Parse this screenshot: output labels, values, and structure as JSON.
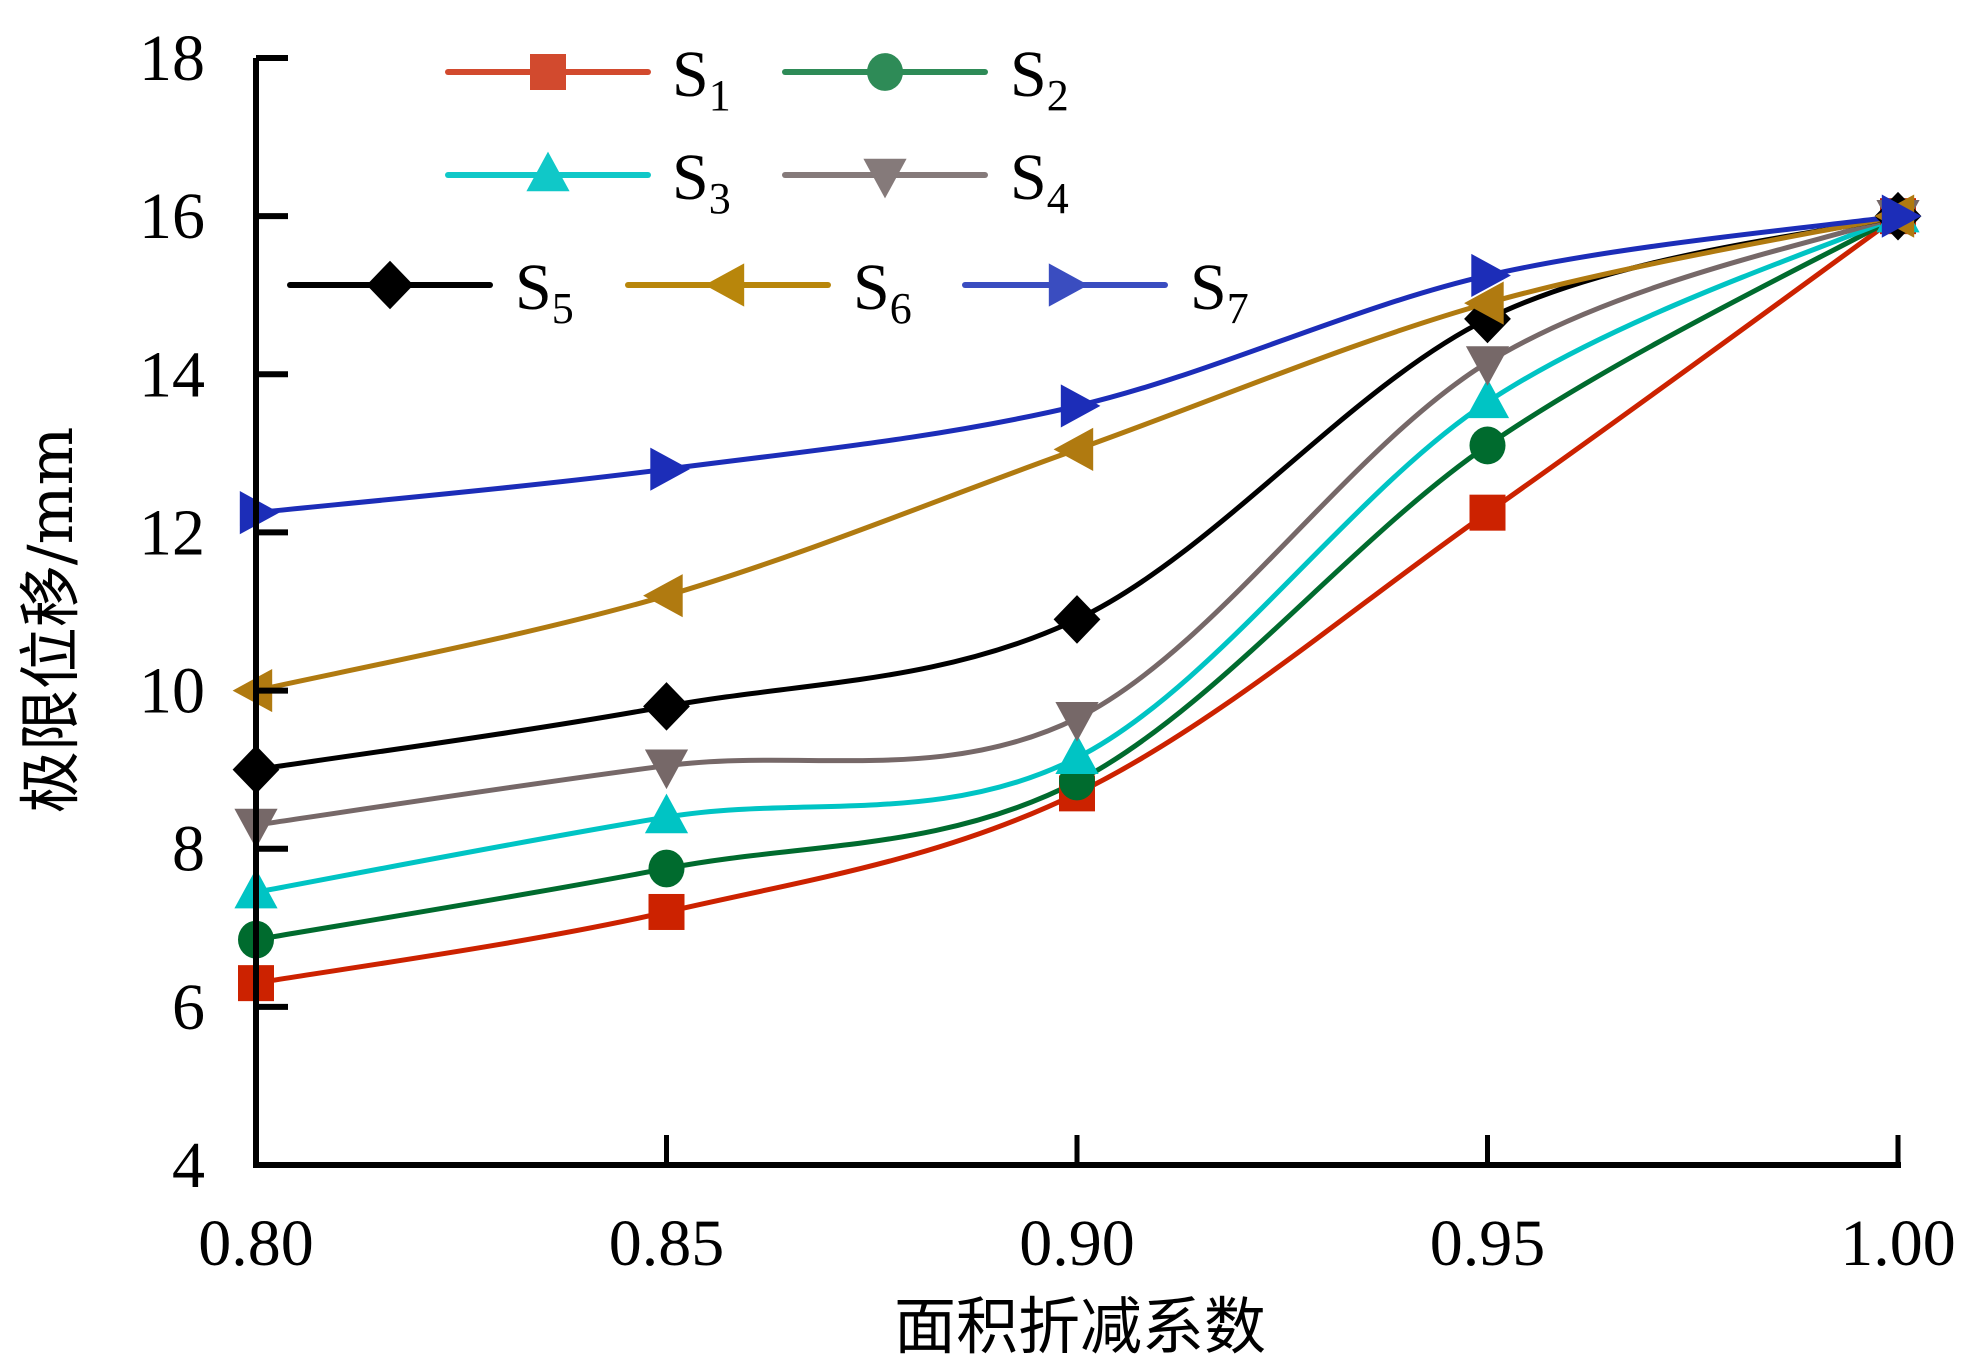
{
  "chart_data": {
    "type": "line",
    "title": "",
    "xlabel": "面积折减系数",
    "ylabel": "极限位移/mm",
    "x": [
      0.8,
      0.85,
      0.9,
      0.95,
      1.0
    ],
    "xticks": [
      "0.80",
      "0.85",
      "0.90",
      "0.95",
      "1.00"
    ],
    "yticks": [
      "4",
      "6",
      "8",
      "10",
      "12",
      "14",
      "16",
      "18"
    ],
    "xlim": [
      0.8,
      1.0
    ],
    "ylim": [
      4,
      18
    ],
    "grid": false,
    "smooth": true,
    "legend_position": "top-left",
    "series": [
      {
        "name": "S",
        "sub": "1",
        "marker": "square",
        "color": "#CC2200",
        "legend_color": "#D24A2E",
        "values": [
          6.3,
          7.2,
          8.7,
          12.25,
          16.0
        ]
      },
      {
        "name": "S",
        "sub": "2",
        "marker": "circle",
        "color": "#006B2E",
        "legend_color": "#2E8B57",
        "values": [
          6.85,
          7.75,
          8.85,
          13.1,
          16.0
        ]
      },
      {
        "name": "S",
        "sub": "3",
        "marker": "triangle-up",
        "color": "#00C4C4",
        "legend_color": "#10C8C8",
        "values": [
          7.45,
          8.4,
          9.15,
          13.65,
          16.0
        ]
      },
      {
        "name": "S",
        "sub": "4",
        "marker": "triangle-down",
        "color": "#766868",
        "legend_color": "#857A7A",
        "values": [
          8.3,
          9.05,
          9.65,
          14.15,
          16.0
        ]
      },
      {
        "name": "S",
        "sub": "5",
        "marker": "diamond",
        "color": "#000000",
        "legend_color": "#000000",
        "values": [
          9.0,
          9.8,
          10.9,
          14.7,
          16.0
        ]
      },
      {
        "name": "S",
        "sub": "6",
        "marker": "triangle-left",
        "color": "#B07A10",
        "legend_color": "#B8860B",
        "values": [
          10.0,
          11.2,
          13.05,
          14.9,
          16.0
        ]
      },
      {
        "name": "S",
        "sub": "7",
        "marker": "triangle-right",
        "color": "#1C2DB8",
        "legend_color": "#3A4DC0",
        "values": [
          12.25,
          12.8,
          13.6,
          15.25,
          16.0
        ]
      }
    ]
  }
}
